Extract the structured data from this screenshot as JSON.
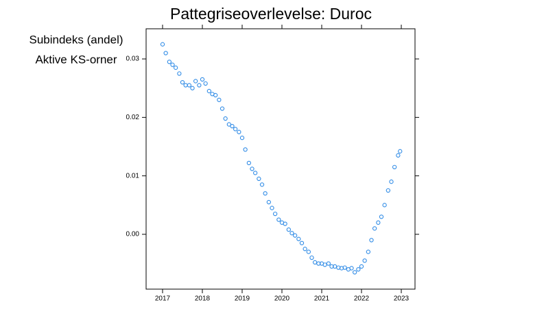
{
  "chart_data": {
    "type": "scatter",
    "title": "Pattegriseoverlevelse: Duroc",
    "labels": [
      "Subindeks (andel)",
      "Aktive KS-orner"
    ],
    "color": "#2f8be6",
    "xlim": [
      2016.586,
      2023.345
    ],
    "xticks": [
      2017,
      2018,
      2019,
      2020,
      2021,
      2022,
      2023
    ],
    "ylim": [
      -0.00938,
      0.03516
    ],
    "yticks": [
      {
        "value": 0,
        "label": "0.00"
      },
      0.01,
      0.02,
      0.03
    ],
    "series": [
      {
        "name": "Aktive KS-orner",
        "color": "#2f8be6",
        "x": [
          2017.0,
          2017.08,
          2017.17,
          2017.25,
          2017.33,
          2017.42,
          2017.5,
          2017.58,
          2017.67,
          2017.75,
          2017.83,
          2017.92,
          2018.0,
          2018.08,
          2018.17,
          2018.25,
          2018.33,
          2018.42,
          2018.5,
          2018.58,
          2018.67,
          2018.75,
          2018.83,
          2018.92,
          2019.0,
          2019.08,
          2019.17,
          2019.25,
          2019.33,
          2019.42,
          2019.5,
          2019.58,
          2019.67,
          2019.75,
          2019.83,
          2019.92,
          2020.0,
          2020.08,
          2020.17,
          2020.25,
          2020.33,
          2020.42,
          2020.5,
          2020.58,
          2020.67,
          2020.75,
          2020.83,
          2020.92,
          2021.0,
          2021.08,
          2021.17,
          2021.25,
          2021.33,
          2021.42,
          2021.5,
          2021.58,
          2021.67,
          2021.75,
          2021.83,
          2021.92,
          2022.0,
          2022.08,
          2022.17,
          2022.25,
          2022.33,
          2022.42,
          2022.5,
          2022.58,
          2022.67,
          2022.75,
          2022.83,
          2022.92,
          2022.97
        ],
        "values": [
          0.0325,
          0.031,
          0.0295,
          0.029,
          0.0285,
          0.0275,
          0.026,
          0.0255,
          0.0255,
          0.025,
          0.0262,
          0.0255,
          0.0265,
          0.0258,
          0.0245,
          0.024,
          0.0238,
          0.023,
          0.0215,
          0.0198,
          0.0188,
          0.0185,
          0.018,
          0.0175,
          0.0165,
          0.0145,
          0.0122,
          0.0112,
          0.0105,
          0.0095,
          0.0085,
          0.007,
          0.0055,
          0.0045,
          0.0035,
          0.0025,
          0.002,
          0.0018,
          0.0008,
          0.0002,
          -0.0002,
          -0.0008,
          -0.0015,
          -0.0025,
          -0.003,
          -0.004,
          -0.0048,
          -0.005,
          -0.005,
          -0.0052,
          -0.005,
          -0.0055,
          -0.0055,
          -0.0057,
          -0.0058,
          -0.0057,
          -0.006,
          -0.0058,
          -0.0065,
          -0.006,
          -0.0055,
          -0.0045,
          -0.003,
          -0.001,
          0.001,
          0.002,
          0.003,
          0.005,
          0.0075,
          0.009,
          0.0115,
          0.0135,
          0.0142
        ]
      }
    ]
  }
}
